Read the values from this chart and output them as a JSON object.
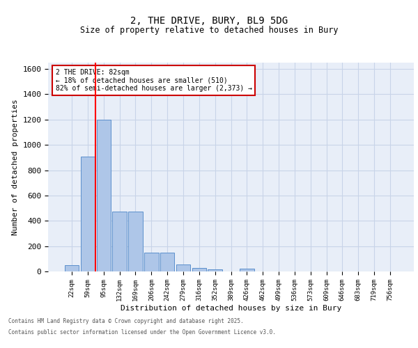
{
  "title_line1": "2, THE DRIVE, BURY, BL9 5DG",
  "title_line2": "Size of property relative to detached houses in Bury",
  "xlabel": "Distribution of detached houses by size in Bury",
  "ylabel": "Number of detached properties",
  "categories": [
    "22sqm",
    "59sqm",
    "95sqm",
    "132sqm",
    "169sqm",
    "206sqm",
    "242sqm",
    "279sqm",
    "316sqm",
    "352sqm",
    "389sqm",
    "426sqm",
    "462sqm",
    "499sqm",
    "536sqm",
    "573sqm",
    "609sqm",
    "646sqm",
    "683sqm",
    "719sqm",
    "756sqm"
  ],
  "values": [
    50,
    910,
    1200,
    475,
    475,
    150,
    150,
    55,
    30,
    15,
    0,
    20,
    0,
    0,
    0,
    0,
    0,
    0,
    0,
    0,
    0
  ],
  "bar_color": "#aec6e8",
  "bar_edge_color": "#5b8fcc",
  "grid_color": "#c8d4e8",
  "background_color": "#e8eef8",
  "annotation_text": "2 THE DRIVE: 82sqm\n← 18% of detached houses are smaller (510)\n82% of semi-detached houses are larger (2,373) →",
  "annotation_box_color": "#ffffff",
  "annotation_box_edge": "#cc0000",
  "ylim": [
    0,
    1650
  ],
  "yticks": [
    0,
    200,
    400,
    600,
    800,
    1000,
    1200,
    1400,
    1600
  ],
  "footer_line1": "Contains HM Land Registry data © Crown copyright and database right 2025.",
  "footer_line2": "Contains public sector information licensed under the Open Government Licence v3.0.",
  "fig_bg": "#ffffff",
  "red_line_x": 1.5
}
